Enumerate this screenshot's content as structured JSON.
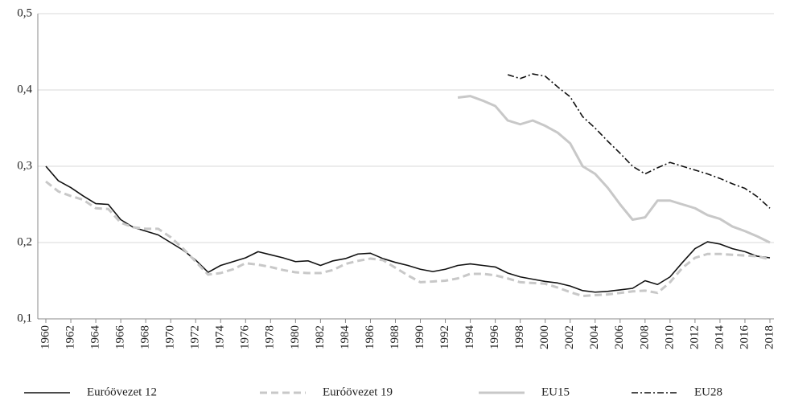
{
  "chart_data": {
    "type": "line",
    "x": [
      1960,
      1961,
      1962,
      1963,
      1964,
      1965,
      1966,
      1967,
      1968,
      1969,
      1970,
      1971,
      1972,
      1973,
      1974,
      1975,
      1976,
      1977,
      1978,
      1979,
      1980,
      1981,
      1982,
      1983,
      1984,
      1985,
      1986,
      1987,
      1988,
      1989,
      1990,
      1991,
      1992,
      1993,
      1994,
      1995,
      1996,
      1997,
      1998,
      1999,
      2000,
      2001,
      2002,
      2003,
      2004,
      2005,
      2006,
      2007,
      2008,
      2009,
      2010,
      2011,
      2012,
      2013,
      2014,
      2015,
      2016,
      2017,
      2018
    ],
    "xlim": [
      1960,
      2018
    ],
    "xticks": [
      1960,
      1962,
      1964,
      1966,
      1968,
      1970,
      1972,
      1974,
      1976,
      1978,
      1980,
      1982,
      1984,
      1986,
      1988,
      1990,
      1992,
      1994,
      1996,
      1998,
      2000,
      2002,
      2004,
      2006,
      2008,
      2010,
      2012,
      2014,
      2016,
      2018
    ],
    "ylim": [
      0.1,
      0.5
    ],
    "yticks": [
      {
        "value": 0.1,
        "label": "0,1"
      },
      {
        "value": 0.2,
        "label": "0,2"
      },
      {
        "value": 0.3,
        "label": "0,3"
      },
      {
        "value": 0.4,
        "label": "0,4"
      },
      {
        "value": 0.5,
        "label": "0,5"
      }
    ],
    "grid": true,
    "legend": "bottom",
    "series": [
      {
        "name": "Euróövezet 12",
        "color": "#111111",
        "dash": "solid",
        "width": 1.6,
        "values": [
          0.3,
          0.281,
          0.272,
          0.261,
          0.251,
          0.25,
          0.23,
          0.22,
          0.215,
          0.21,
          0.2,
          0.19,
          0.177,
          0.161,
          0.17,
          0.175,
          0.18,
          0.188,
          0.184,
          0.18,
          0.175,
          0.176,
          0.17,
          0.176,
          0.179,
          0.185,
          0.186,
          0.179,
          0.174,
          0.17,
          0.165,
          0.162,
          0.165,
          0.17,
          0.172,
          0.17,
          0.168,
          0.16,
          0.155,
          0.152,
          0.149,
          0.147,
          0.143,
          0.137,
          0.135,
          0.136,
          0.138,
          0.14,
          0.15,
          0.145,
          0.155,
          0.174,
          0.192,
          0.201,
          0.198,
          0.192,
          0.188,
          0.182,
          0.18
        ]
      },
      {
        "name": "Euróövezet 19",
        "color": "#c8c8c8",
        "dash": "dashed",
        "width": 3,
        "values": [
          0.28,
          0.267,
          0.261,
          0.256,
          0.245,
          0.244,
          0.226,
          0.22,
          0.218,
          0.218,
          0.207,
          0.192,
          0.175,
          0.158,
          0.16,
          0.165,
          0.173,
          0.171,
          0.168,
          0.164,
          0.161,
          0.16,
          0.16,
          0.164,
          0.172,
          0.176,
          0.179,
          0.177,
          0.167,
          0.157,
          0.148,
          0.149,
          0.15,
          0.153,
          0.159,
          0.159,
          0.157,
          0.153,
          0.148,
          0.147,
          0.146,
          0.141,
          0.135,
          0.13,
          0.131,
          0.132,
          0.134,
          0.136,
          0.137,
          0.134,
          0.148,
          0.167,
          0.18,
          0.185,
          0.185,
          0.184,
          0.183,
          0.182,
          0.178
        ]
      },
      {
        "name": "EU15",
        "color": "#c8c8c8",
        "dash": "solid",
        "width": 3,
        "values": [
          null,
          null,
          null,
          null,
          null,
          null,
          null,
          null,
          null,
          null,
          null,
          null,
          null,
          null,
          null,
          null,
          null,
          null,
          null,
          null,
          null,
          null,
          null,
          null,
          null,
          null,
          null,
          null,
          null,
          null,
          null,
          null,
          null,
          0.39,
          0.392,
          0.386,
          0.379,
          0.36,
          0.355,
          0.36,
          0.353,
          0.344,
          0.33,
          0.3,
          0.29,
          0.272,
          0.25,
          0.23,
          0.233,
          0.255,
          0.255,
          0.25,
          0.245,
          0.236,
          0.231,
          0.221,
          0.215,
          0.208,
          0.2
        ]
      },
      {
        "name": "EU28",
        "color": "#111111",
        "dash": "dashdot",
        "width": 1.6,
        "values": [
          null,
          null,
          null,
          null,
          null,
          null,
          null,
          null,
          null,
          null,
          null,
          null,
          null,
          null,
          null,
          null,
          null,
          null,
          null,
          null,
          null,
          null,
          null,
          null,
          null,
          null,
          null,
          null,
          null,
          null,
          null,
          null,
          null,
          null,
          null,
          null,
          null,
          0.42,
          0.415,
          0.421,
          0.418,
          0.404,
          0.391,
          0.365,
          0.35,
          0.333,
          0.317,
          0.3,
          0.29,
          0.298,
          0.305,
          0.3,
          0.295,
          0.29,
          0.284,
          0.277,
          0.271,
          0.26,
          0.245
        ]
      }
    ]
  }
}
